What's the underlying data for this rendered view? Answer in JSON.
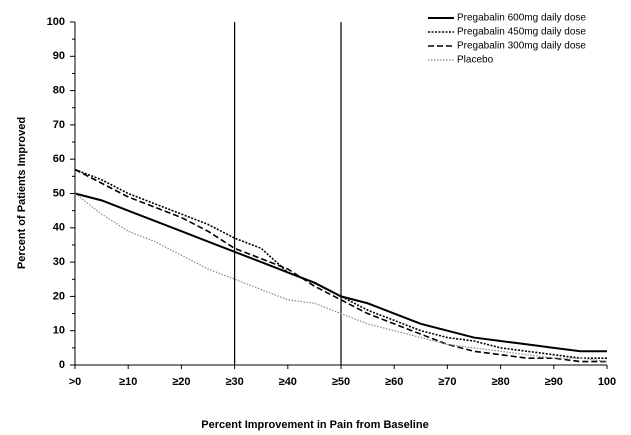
{
  "chart_data": {
    "type": "line",
    "xlabel": "Percent Improvement in Pain from Baseline",
    "ylabel": "Percent of Patients Improved",
    "x": [
      0,
      5,
      10,
      15,
      20,
      25,
      30,
      35,
      40,
      45,
      50,
      55,
      60,
      65,
      70,
      75,
      80,
      85,
      90,
      95,
      100
    ],
    "series": [
      {
        "name": "Pregabalin 600mg daily dose",
        "color": "#000000",
        "dash": "none",
        "width": 2,
        "values": [
          50,
          48,
          45,
          42,
          39,
          36,
          33,
          30,
          27,
          24,
          20,
          18,
          15,
          12,
          10,
          8,
          7,
          6,
          5,
          4,
          4
        ]
      },
      {
        "name": "Pregabalin 450mg daily dose",
        "color": "#000000",
        "dash": "2,1.5",
        "width": 1.6,
        "values": [
          57,
          54,
          50,
          47,
          44,
          41,
          37,
          34,
          27,
          24,
          20,
          16,
          13,
          10,
          8,
          7,
          5,
          4,
          3,
          2,
          2
        ]
      },
      {
        "name": "Pregabalin 300mg daily dose",
        "color": "#000000",
        "dash": "6,3",
        "width": 1.6,
        "values": [
          57,
          53,
          49,
          46,
          43,
          39,
          34,
          31,
          28,
          23,
          19,
          15,
          12,
          9,
          6,
          4,
          3,
          2,
          2,
          1,
          1
        ]
      },
      {
        "name": "Placebo",
        "color": "#888888",
        "dash": "1.5,1.5",
        "width": 1.2,
        "values": [
          50,
          44,
          39,
          36,
          32,
          28,
          25,
          22,
          19,
          18,
          15,
          12,
          10,
          8,
          6,
          5,
          4,
          3,
          2,
          2,
          1
        ]
      }
    ],
    "reference_lines": [
      30,
      50
    ],
    "xlim": [
      0,
      100
    ],
    "xticks": [
      {
        "value": 0,
        "label": ">0"
      },
      {
        "value": 10,
        "label": "≥10"
      },
      {
        "value": 20,
        "label": "≥20"
      },
      {
        "value": 30,
        "label": "≥30"
      },
      {
        "value": 40,
        "label": "≥40"
      },
      {
        "value": 50,
        "label": "≥50"
      },
      {
        "value": 60,
        "label": "≥60"
      },
      {
        "value": 70,
        "label": "≥70"
      },
      {
        "value": 80,
        "label": "≥80"
      },
      {
        "value": 90,
        "label": "≥90"
      },
      100
    ],
    "ylim": [
      0,
      100
    ],
    "yticks": [
      0,
      10,
      20,
      30,
      40,
      50,
      60,
      70,
      80,
      90,
      100
    ],
    "minor_yticks": [
      5,
      15,
      25,
      35,
      45,
      55,
      65,
      75,
      85,
      95
    ],
    "legend": "upper right"
  }
}
